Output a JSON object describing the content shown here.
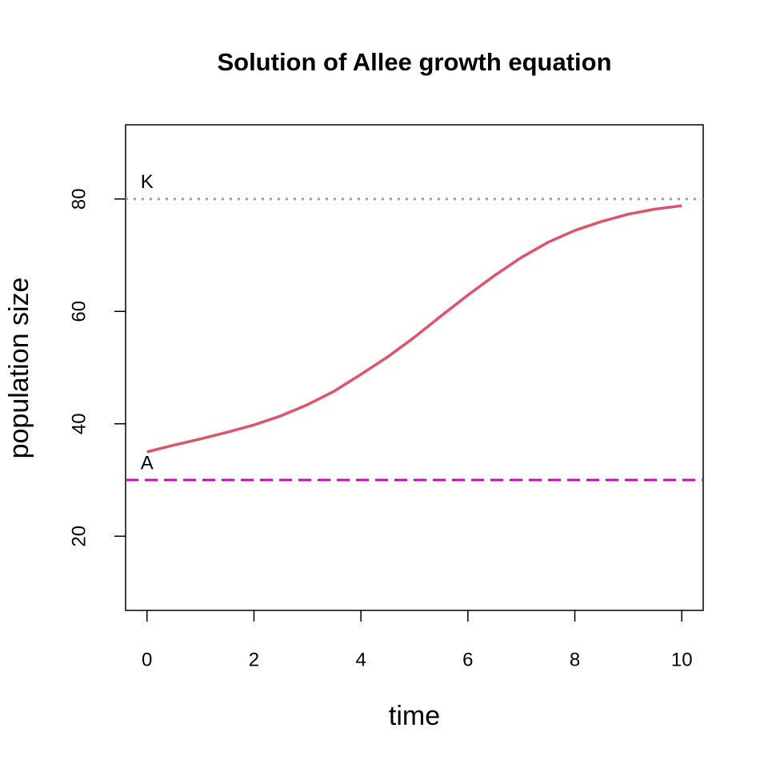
{
  "chart_data": {
    "type": "line",
    "title": "Solution of Allee growth equation",
    "x_label": "time",
    "y_label": "population size",
    "x": [
      0,
      0.5,
      1,
      1.5,
      2,
      2.5,
      3,
      3.5,
      4,
      4.5,
      5,
      5.5,
      6,
      6.5,
      7,
      7.5,
      8,
      8.5,
      9,
      9.5,
      10
    ],
    "series": [
      {
        "color": "#df536b",
        "values": [
          35,
          36.2,
          37.3,
          38.5,
          39.8,
          41.4,
          43.4,
          45.8,
          48.8,
          51.9,
          55.4,
          59.2,
          62.9,
          66.4,
          69.6,
          72.3,
          74.4,
          76.0,
          77.3,
          78.2,
          78.8
        ]
      }
    ],
    "hlines": [
      {
        "label": "K",
        "value": 80,
        "color": "#9e9e9e",
        "dash": "dotted"
      },
      {
        "label": "A",
        "value": 30,
        "color": "#cd0bbc",
        "dash": "dashed"
      }
    ],
    "xlim": [
      -0.4,
      10.4
    ],
    "xticks": [
      0,
      2,
      4,
      6,
      8,
      10
    ],
    "ylim": [
      6.8,
      93.2
    ],
    "yticks": [
      20,
      40,
      60,
      80
    ]
  }
}
